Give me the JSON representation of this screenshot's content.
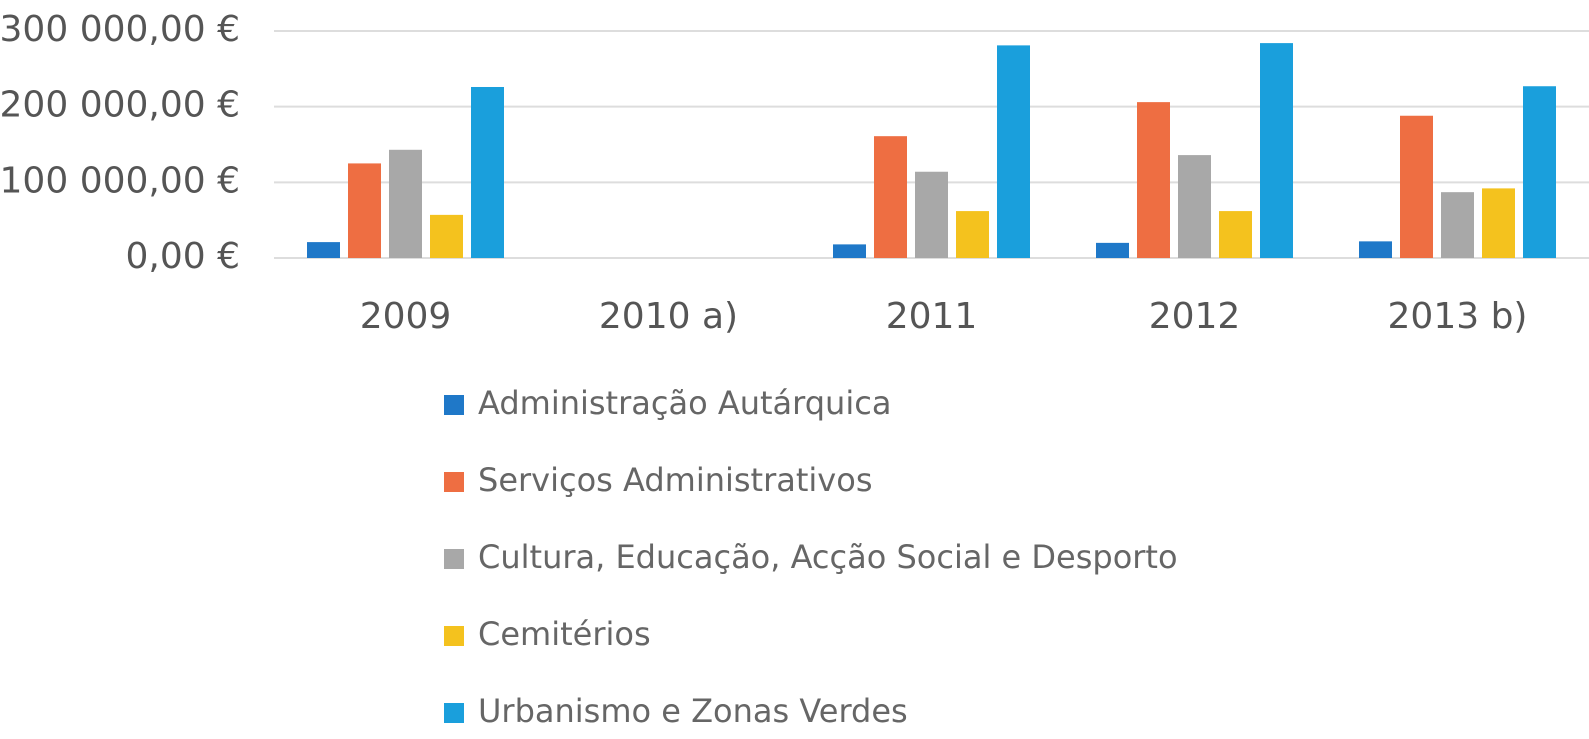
{
  "chart_data": {
    "type": "bar",
    "categories": [
      "2009",
      "2010 a)",
      "2011",
      "2012",
      "2013 b)"
    ],
    "series": [
      {
        "name": "Administração Autárquica",
        "color": "#1f78c8",
        "values": [
          21000,
          null,
          18000,
          20000,
          22000
        ]
      },
      {
        "name": "Serviços Administrativos",
        "color": "#ee6e42",
        "values": [
          125000,
          null,
          161000,
          206000,
          188000
        ]
      },
      {
        "name": "Cultura, Educação, Acção Social e Desporto",
        "color": "#a8a8a8",
        "values": [
          143000,
          null,
          114000,
          136000,
          87000
        ]
      },
      {
        "name": "Cemitérios",
        "color": "#f4c21e",
        "values": [
          57000,
          null,
          62000,
          62000,
          92000
        ]
      },
      {
        "name": "Urbanismo e Zonas Verdes",
        "color": "#1a9fdc",
        "values": [
          226000,
          null,
          281000,
          284000,
          227000
        ]
      }
    ],
    "ylim": [
      0,
      300000
    ],
    "yticks": [
      {
        "value": 0,
        "label": "0,00 €"
      },
      {
        "value": 100000,
        "label": "100 000,00 €"
      },
      {
        "value": 200000,
        "label": "200 000,00 €"
      },
      {
        "value": 300000,
        "label": "300 000,00 €"
      }
    ],
    "grid": true
  }
}
